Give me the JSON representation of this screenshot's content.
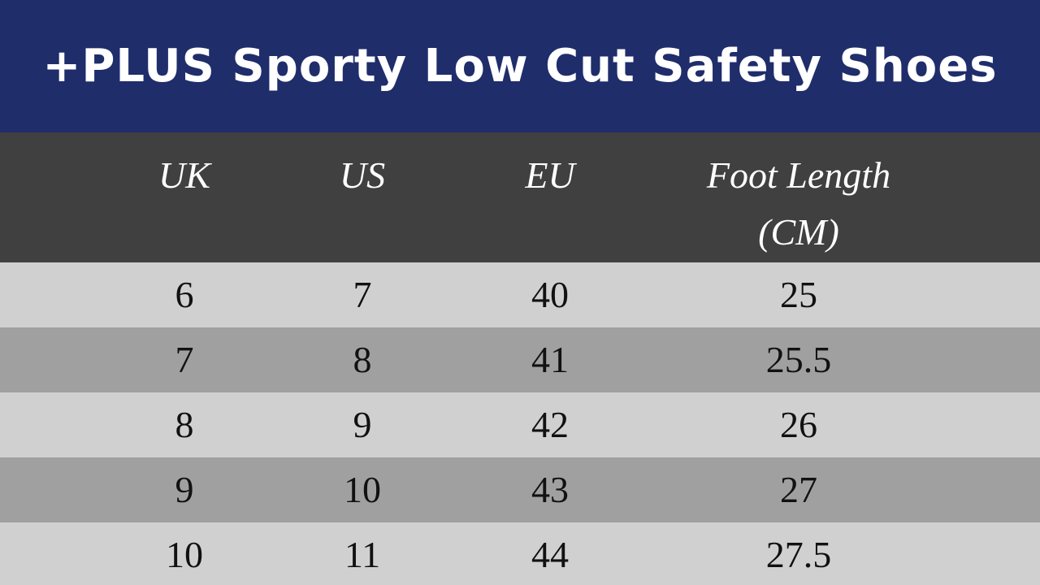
{
  "header": {
    "title": "+PLUS Sporty Low Cut Safety Shoes"
  },
  "table": {
    "columns": [
      "UK",
      "US",
      "EU",
      "Foot Length (CM)"
    ],
    "rows": [
      [
        "6",
        "7",
        "40",
        "25"
      ],
      [
        "7",
        "8",
        "41",
        "25.5"
      ],
      [
        "8",
        "9",
        "42",
        "26"
      ],
      [
        "9",
        "10",
        "43",
        "27"
      ],
      [
        "10",
        "11",
        "44",
        "27.5"
      ]
    ]
  }
}
